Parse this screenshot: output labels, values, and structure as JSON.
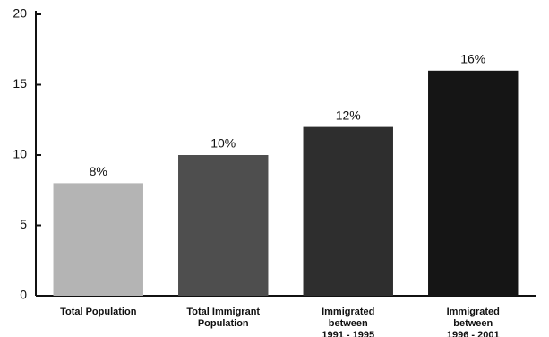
{
  "chart_data": {
    "type": "bar",
    "categories": [
      [
        "Total Population"
      ],
      [
        "Total Immigrant",
        "Population"
      ],
      [
        "Immigrated",
        "between",
        "1991 - 1995"
      ],
      [
        "Immigrated",
        "between",
        "1996 - 2001"
      ]
    ],
    "values": [
      8,
      10,
      12,
      16
    ],
    "value_labels": [
      "8%",
      "10%",
      "12%",
      "16%"
    ],
    "colors": [
      "#b4b4b4",
      "#4e4e4e",
      "#2e2e2e",
      "#151515"
    ],
    "ylim": [
      0,
      20
    ],
    "yticks": [
      0,
      5,
      10,
      15,
      20
    ],
    "grid": false
  }
}
